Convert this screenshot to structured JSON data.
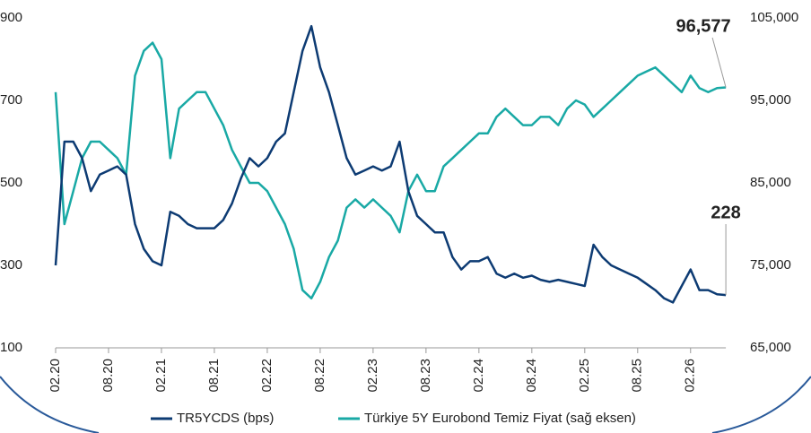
{
  "chart_data": {
    "type": "line",
    "categories": [
      "02.20",
      "03.20",
      "04.20",
      "05.20",
      "06.20",
      "07.20",
      "08.20",
      "09.20",
      "10.20",
      "11.20",
      "12.20",
      "01.21",
      "02.21",
      "03.21",
      "04.21",
      "05.21",
      "06.21",
      "07.21",
      "08.21",
      "09.21",
      "10.21",
      "11.21",
      "12.21",
      "01.22",
      "02.22",
      "03.22",
      "04.22",
      "05.22",
      "06.22",
      "07.22",
      "08.22",
      "09.22",
      "10.22",
      "11.22",
      "12.22",
      "01.23",
      "02.23",
      "03.23",
      "04.23",
      "05.23",
      "06.23",
      "07.23",
      "08.23",
      "09.23",
      "10.23",
      "11.23",
      "12.23",
      "01.24",
      "02.24",
      "03.24",
      "04.24",
      "05.24",
      "06.24",
      "07.24",
      "08.24",
      "09.24",
      "10.24",
      "11.24",
      "12.24",
      "01.25",
      "02.25",
      "03.25",
      "04.25",
      "05.25",
      "06.25",
      "07.25",
      "08.25",
      "09.25",
      "10.25",
      "11.25",
      "12.25",
      "01.26",
      "02.26",
      "03.26",
      "04.26",
      "05.26",
      "06.26"
    ],
    "xticks": [
      "02.20",
      "08.20",
      "02.21",
      "08.21",
      "02.22",
      "08.22",
      "02.23",
      "08.23",
      "02.24",
      "08.24",
      "02.25",
      "08.25",
      "02.26"
    ],
    "series": [
      {
        "name": "TR5YCDS (bps)",
        "color": "#0d3b73",
        "axis": "y",
        "values": [
          300,
          600,
          600,
          560,
          480,
          520,
          530,
          540,
          520,
          400,
          340,
          310,
          300,
          430,
          420,
          400,
          390,
          390,
          390,
          410,
          450,
          510,
          560,
          540,
          560,
          600,
          620,
          720,
          820,
          880,
          780,
          720,
          640,
          560,
          520,
          530,
          540,
          530,
          540,
          600,
          480,
          420,
          400,
          380,
          380,
          320,
          290,
          310,
          310,
          320,
          280,
          270,
          280,
          270,
          275,
          265,
          260,
          265,
          260,
          255,
          250,
          350,
          320,
          300,
          290,
          280,
          270,
          255,
          240,
          220,
          210,
          250,
          290,
          240,
          240,
          230,
          228
        ]
      },
      {
        "name": "Türkiye 5Y Eurobond Temiz Fiyat (sağ eksen)",
        "color": "#19a9a5",
        "axis": "y2",
        "values": [
          96000,
          80000,
          84000,
          88000,
          90000,
          90000,
          89000,
          88000,
          86000,
          98000,
          101000,
          102000,
          100000,
          88000,
          94000,
          95000,
          96000,
          96000,
          94000,
          92000,
          89000,
          87000,
          85000,
          85000,
          84000,
          82000,
          80000,
          77000,
          72000,
          71000,
          73000,
          76000,
          78000,
          82000,
          83000,
          82000,
          83000,
          82000,
          81000,
          79000,
          84000,
          86000,
          84000,
          84000,
          87000,
          88000,
          89000,
          90000,
          91000,
          91000,
          93000,
          94000,
          93000,
          92000,
          92000,
          93000,
          93000,
          92000,
          94000,
          95000,
          94500,
          93000,
          94000,
          95000,
          96000,
          97000,
          98000,
          98500,
          99000,
          98000,
          97000,
          96000,
          98000,
          96500,
          96000,
          96500,
          96577
        ]
      }
    ],
    "ylim": [
      100,
      900
    ],
    "yticks": [
      100,
      300,
      500,
      700,
      900
    ],
    "y2lim": [
      65000,
      105000
    ],
    "y2ticks": [
      {
        "value": 65000,
        "label": "65,000"
      },
      {
        "value": 75000,
        "label": "75,000"
      },
      {
        "value": 85000,
        "label": "85,000"
      },
      {
        "value": 95000,
        "label": "95,000"
      },
      {
        "value": 105000,
        "label": "105,000"
      }
    ],
    "annotations": [
      {
        "label": "96,577",
        "series": 1,
        "point": 76
      },
      {
        "label": "228",
        "series": 0,
        "point": 76
      }
    ],
    "legend": "bottom",
    "grid": false
  }
}
